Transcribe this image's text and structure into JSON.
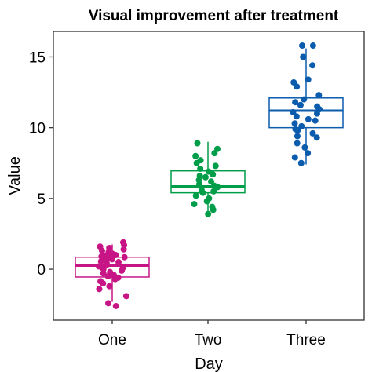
{
  "chart_data": {
    "type": "box",
    "title": "Visual improvement after treatment",
    "xlabel": "Day",
    "ylabel": "Value",
    "categories": [
      "One",
      "Two",
      "Three"
    ],
    "ylim": [
      -3.6,
      16.8
    ],
    "yticks": [
      0,
      5,
      10,
      15
    ],
    "grid": false,
    "legend": "none",
    "series": [
      {
        "category": "One",
        "color": "#c71585",
        "box": {
          "whisker_low": -2.3,
          "q1": -0.55,
          "median": 0.25,
          "q3": 0.85,
          "whisker_high": 1.75
        },
        "points": [
          1.9,
          1.7,
          1.6,
          1.5,
          1.4,
          1.3,
          1.2,
          1.1,
          1.0,
          0.95,
          0.9,
          0.85,
          0.8,
          0.75,
          0.7,
          0.6,
          0.55,
          0.5,
          0.45,
          0.3,
          0.2,
          0.1,
          0.0,
          -0.1,
          -0.2,
          -0.3,
          -0.4,
          -0.5,
          -0.6,
          -0.7,
          -0.85,
          -1.0,
          -1.2,
          -1.4,
          -1.9,
          -2.4,
          -2.6
        ]
      },
      {
        "category": "Two",
        "color": "#009e49",
        "box": {
          "whisker_low": 3.8,
          "q1": 5.4,
          "median": 5.85,
          "q3": 6.95,
          "whisker_high": 9.0
        },
        "points": [
          8.9,
          8.5,
          8.2,
          8.0,
          7.7,
          7.5,
          7.3,
          7.1,
          6.9,
          6.7,
          6.6,
          6.5,
          6.3,
          6.2,
          6.0,
          5.9,
          5.8,
          5.6,
          5.5,
          5.4,
          5.2,
          5.0,
          4.8,
          4.6,
          4.4,
          4.2,
          3.9
        ]
      },
      {
        "category": "Three",
        "color": "#0b5cad",
        "box": {
          "whisker_low": 7.4,
          "q1": 10.0,
          "median": 11.2,
          "q3": 12.1,
          "whisker_high": 15.6
        },
        "points": [
          15.8,
          15.8,
          15.0,
          14.4,
          13.4,
          13.2,
          12.9,
          12.3,
          12.0,
          11.8,
          11.6,
          11.5,
          11.3,
          11.1,
          11.0,
          10.8,
          10.6,
          10.5,
          10.3,
          10.1,
          9.9,
          9.8,
          9.6,
          9.4,
          9.3,
          8.9,
          8.6,
          8.2,
          7.9,
          7.5
        ]
      }
    ]
  }
}
